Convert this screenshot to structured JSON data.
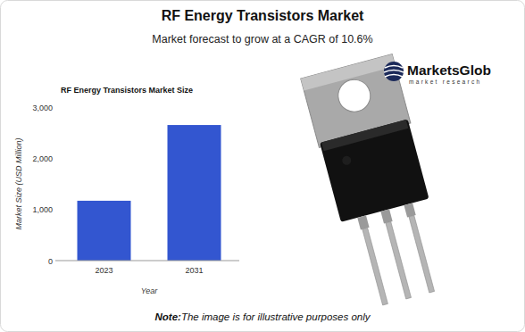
{
  "header": {
    "title": "RF Energy Transistors Market",
    "subtitle": "Market forecast to grow at a CAGR of 10.6%"
  },
  "logo": {
    "name": "MarketsGlob",
    "tagline": "market research"
  },
  "chart_data": {
    "type": "bar",
    "title": "RF Energy Transistors Market Size",
    "x_label": "Year",
    "y_label": "Market Size (USD Million)",
    "categories": [
      "2023",
      "2031"
    ],
    "values": [
      1170,
      2650
    ],
    "color": "#3356d0",
    "ylim": [
      0,
      3000
    ],
    "yticks": [
      0,
      {
        "value": 1000,
        "label": "1,000"
      },
      {
        "value": 2000,
        "label": "2,000"
      },
      {
        "value": 3000,
        "label": "3,000"
      }
    ],
    "grid": false
  },
  "note": {
    "label": "Note:",
    "text": "The image is for illustrative purposes only"
  }
}
